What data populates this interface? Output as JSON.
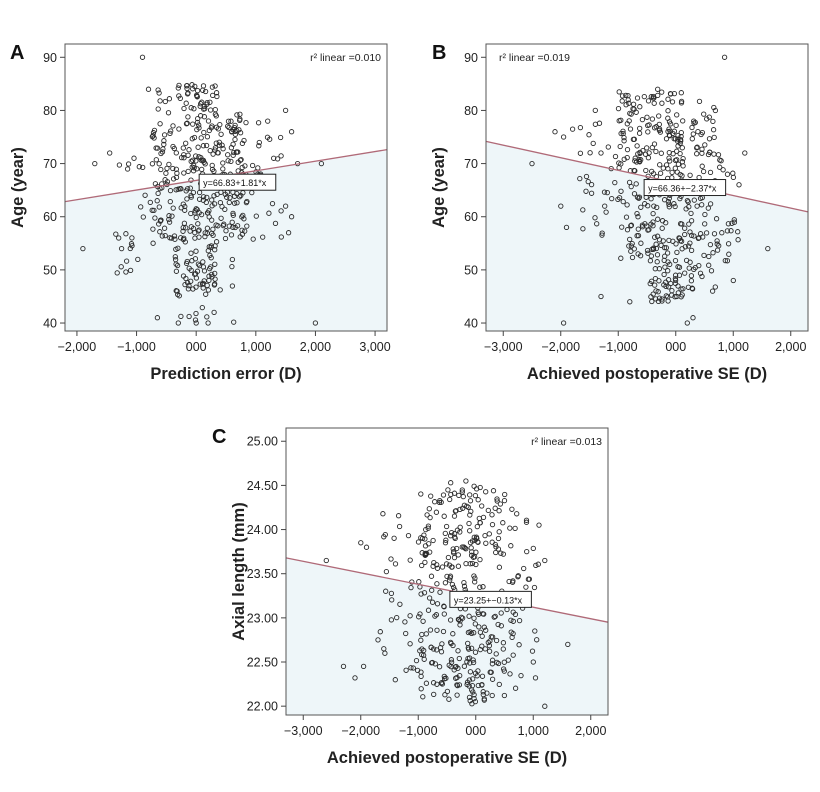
{
  "chart_data": [
    {
      "type": "scatter",
      "panel": "A",
      "xlabel": "Prediction error (D)",
      "ylabel": "Age (year)",
      "xlim": [
        -2.2,
        3.2
      ],
      "ylim": [
        38.5,
        92.5
      ],
      "x_ticks": [
        -2,
        -1,
        0,
        1,
        2,
        3
      ],
      "x_tick_labels": [
        "−2,000",
        "−1,000",
        "000",
        "1,000",
        "2,000",
        "3,000"
      ],
      "y_ticks": [
        40,
        50,
        60,
        70,
        80,
        90
      ],
      "y_tick_labels": [
        "40",
        "50",
        "60",
        "70",
        "80",
        "90"
      ],
      "r2_label": "r² linear =0.010",
      "fit": {
        "intercept": 66.83,
        "slope": 1.81,
        "label": "y=66.83+1.81*x",
        "label_at": [
          0.05,
          68
        ]
      },
      "seed": 11,
      "point_groups": [
        {
          "x": [
            -0.75,
            -0.35
          ],
          "y": [
            55,
            84
          ],
          "n": 70
        },
        {
          "x": [
            -0.35,
            0.35
          ],
          "y": [
            45,
            85
          ],
          "n": 230
        },
        {
          "x": [
            0.35,
            0.85
          ],
          "y": [
            55,
            80
          ],
          "n": 110
        },
        {
          "x": [
            0.85,
            1.45
          ],
          "y": [
            55,
            78
          ],
          "n": 25
        },
        {
          "x": [
            -1.35,
            -0.75
          ],
          "y": [
            48,
            72
          ],
          "n": 22
        },
        {
          "x": [
            -0.5,
            0.7
          ],
          "y": [
            40,
            52
          ],
          "n": 22
        }
      ],
      "points": [
        [
          -1.9,
          54
        ],
        [
          -1.7,
          70
        ],
        [
          -1.45,
          72
        ],
        [
          -1.3,
          56
        ],
        [
          -1.25,
          54
        ],
        [
          -0.9,
          90
        ],
        [
          -0.8,
          84
        ],
        [
          -0.65,
          41
        ],
        [
          -0.3,
          40
        ],
        [
          1.6,
          76
        ],
        [
          1.7,
          70
        ],
        [
          1.6,
          60
        ],
        [
          1.5,
          62
        ],
        [
          1.55,
          57
        ],
        [
          2.1,
          70
        ],
        [
          2.0,
          40
        ],
        [
          1.2,
          78
        ],
        [
          1.3,
          71
        ],
        [
          1.5,
          80
        ],
        [
          0.0,
          40
        ],
        [
          0.2,
          40
        ],
        [
          0.3,
          42
        ]
      ]
    },
    {
      "type": "scatter",
      "panel": "B",
      "xlabel": "Achieved postoperative SE (D)",
      "ylabel": "Age (year)",
      "xlim": [
        -3.3,
        2.3
      ],
      "ylim": [
        38.5,
        92.5
      ],
      "x_ticks": [
        -3,
        -2,
        -1,
        0,
        1,
        2
      ],
      "x_tick_labels": [
        "−3,000",
        "−2,000",
        "−1,000",
        "000",
        "1,000",
        "2,000"
      ],
      "y_ticks": [
        40,
        50,
        60,
        70,
        80,
        90
      ],
      "y_tick_labels": [
        "40",
        "50",
        "60",
        "70",
        "80",
        "90"
      ],
      "r2_label": "r² linear =0.019",
      "fit": {
        "intercept": 66.36,
        "slope": -2.37,
        "label": "y=66.36+−2.37*x",
        "label_at": [
          -0.55,
          67
        ]
      },
      "seed": 29,
      "point_groups": [
        {
          "x": [
            -1.0,
            -0.45
          ],
          "y": [
            52,
            84
          ],
          "n": 110
        },
        {
          "x": [
            -0.45,
            0.15
          ],
          "y": [
            44,
            84
          ],
          "n": 200
        },
        {
          "x": [
            0.15,
            0.7
          ],
          "y": [
            46,
            82
          ],
          "n": 90
        },
        {
          "x": [
            -1.8,
            -1.0
          ],
          "y": [
            55,
            78
          ],
          "n": 30
        },
        {
          "x": [
            0.7,
            1.1
          ],
          "y": [
            48,
            72
          ],
          "n": 25
        }
      ],
      "points": [
        [
          -2.5,
          70
        ],
        [
          -2.1,
          76
        ],
        [
          -1.95,
          75
        ],
        [
          -1.9,
          58
        ],
        [
          -1.95,
          40
        ],
        [
          -2.0,
          62
        ],
        [
          -1.4,
          80
        ],
        [
          -1.3,
          72
        ],
        [
          0.85,
          90
        ],
        [
          1.2,
          72
        ],
        [
          1.6,
          54
        ],
        [
          1.0,
          48
        ],
        [
          0.8,
          57
        ],
        [
          0.9,
          68
        ],
        [
          1.1,
          66
        ],
        [
          -1.3,
          45
        ],
        [
          -0.8,
          44
        ],
        [
          0.2,
          40
        ],
        [
          0.3,
          41
        ]
      ]
    },
    {
      "type": "scatter",
      "panel": "C",
      "xlabel": "Achieved postoperative SE (D)",
      "ylabel": "Axial length (mm)",
      "xlim": [
        -3.3,
        2.3
      ],
      "ylim": [
        21.9,
        25.15
      ],
      "x_ticks": [
        -3,
        -2,
        -1,
        0,
        1,
        2
      ],
      "x_tick_labels": [
        "−3,000",
        "−2,000",
        "−1,000",
        "000",
        "1,000",
        "2,000"
      ],
      "y_ticks": [
        22.0,
        22.5,
        23.0,
        23.5,
        24.0,
        24.5,
        25.0
      ],
      "y_tick_labels": [
        "22.00",
        "22.50",
        "23.00",
        "23.50",
        "24.00",
        "24.50",
        "25.00"
      ],
      "r2_label": "r² linear =0.013",
      "fit": {
        "intercept": 23.25,
        "slope": -0.13,
        "label": "y=23.25+−0.13*x",
        "label_at": [
          -0.45,
          23.3
        ]
      },
      "seed": 53,
      "point_groups": [
        {
          "x": [
            -1.0,
            -0.45
          ],
          "y": [
            22.05,
            24.5
          ],
          "n": 110
        },
        {
          "x": [
            -0.45,
            0.15
          ],
          "y": [
            22.0,
            24.55
          ],
          "n": 180
        },
        {
          "x": [
            0.15,
            0.7
          ],
          "y": [
            22.1,
            24.5
          ],
          "n": 80
        },
        {
          "x": [
            -1.7,
            -1.0
          ],
          "y": [
            22.3,
            24.2
          ],
          "n": 30
        },
        {
          "x": [
            0.7,
            1.1
          ],
          "y": [
            22.3,
            24.3
          ],
          "n": 22
        }
      ],
      "points": [
        [
          -2.6,
          23.65
        ],
        [
          -2.3,
          22.45
        ],
        [
          -2.1,
          22.32
        ],
        [
          -2.0,
          23.85
        ],
        [
          -1.9,
          23.8
        ],
        [
          -1.95,
          22.45
        ],
        [
          -1.7,
          22.75
        ],
        [
          -1.6,
          22.65
        ],
        [
          -1.4,
          22.3
        ],
        [
          1.2,
          23.65
        ],
        [
          1.6,
          22.7
        ],
        [
          1.2,
          22.0
        ],
        [
          1.0,
          22.5
        ],
        [
          1.1,
          24.05
        ]
      ]
    }
  ]
}
